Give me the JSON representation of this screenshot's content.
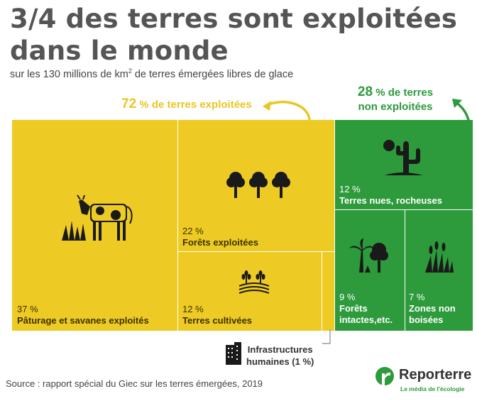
{
  "title": "3/4 des terres sont exploitées dans le monde",
  "subtitle": {
    "text": "sur les 130 millions de km",
    "sup": "2",
    "rest": " de terres émergées libres de glace"
  },
  "callouts": {
    "exploited": {
      "pct": "72",
      "text": " % de terres exploitées"
    },
    "not_exploited": {
      "pct": "28",
      "text": " % de terres",
      "line2": "non exploitées"
    }
  },
  "colors": {
    "yellow": "#eecb24",
    "green": "#2d9a3c",
    "title": "#555555"
  },
  "chart_data": {
    "type": "treemap",
    "title": "3/4 des terres sont exploitées dans le monde",
    "groups": [
      {
        "name": "72 % de terres exploitées",
        "value": 72,
        "color": "#eecb24"
      },
      {
        "name": "28 % de terres non exploitées",
        "value": 28,
        "color": "#2d9a3c"
      }
    ],
    "items": [
      {
        "pct": "37 %",
        "label": "Pâturage et savanes exploités",
        "value": 37,
        "group": "exploited",
        "icon": "cow-grass-icon"
      },
      {
        "pct": "22 %",
        "label": "Forêts exploitées",
        "value": 22,
        "group": "exploited",
        "icon": "trees-icon"
      },
      {
        "pct": "12 %",
        "label": "Terres cultivées",
        "value": 12,
        "group": "exploited",
        "icon": "wheat-field-icon"
      },
      {
        "pct": "",
        "label": "",
        "value": 1,
        "group": "exploited",
        "icon": ""
      },
      {
        "pct": "12 %",
        "label": "Terres nues, rocheuses",
        "value": 12,
        "group": "not_exploited",
        "icon": "cactus-sun-icon"
      },
      {
        "pct": "9 %",
        "label": "Forêts intactes,etc.",
        "label_lines": [
          "Forêts",
          "intactes,etc."
        ],
        "value": 9,
        "group": "not_exploited",
        "icon": "palm-tree-icon"
      },
      {
        "pct": "7 %",
        "label": "Zones non boisées",
        "label_lines": [
          "Zones non",
          "boisées"
        ],
        "value": 7,
        "group": "not_exploited",
        "icon": "reeds-icon"
      }
    ],
    "annotation": {
      "label_lines": [
        "Infrastructures",
        "humaines (1 %)"
      ],
      "value": 1
    }
  },
  "source": "Source : rapport spécial du Giec sur les terres émergées, 2019",
  "logo": {
    "name": "Reporterre",
    "tagline": "Le média de l'écologie"
  }
}
